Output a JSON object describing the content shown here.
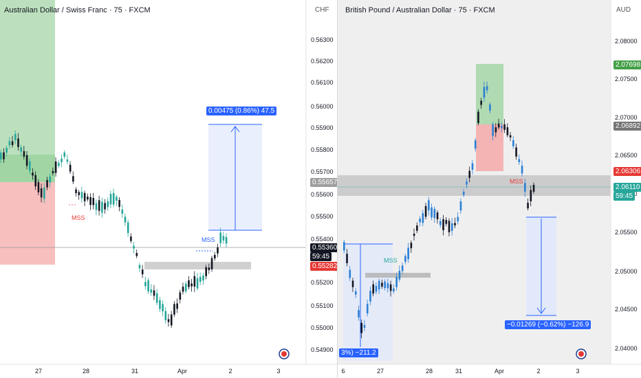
{
  "left_chart": {
    "title": "Australian Dollar / Swiss Franc · 75 · FXCM",
    "currency": "CHF",
    "y_ticks": [
      "0.56300",
      "0.56200",
      "0.56100",
      "0.56000",
      "0.55900",
      "0.55800",
      "0.55700",
      "0.55600",
      "0.55500",
      "0.55400",
      "0.55200",
      "0.55100",
      "0.55000",
      "0.54900"
    ],
    "x_ticks": [
      "27",
      "28",
      "31",
      "Apr",
      "2",
      "3"
    ],
    "current_price": "0.55360",
    "countdown": "59:45",
    "level_tag_a": "0.55657",
    "level_tag_b": "0.55282",
    "measure_label": "0.00475 (0.86%) 47.5",
    "mss_labels": [
      "MSS",
      "MSS"
    ],
    "colors": {
      "up": "#26a69a",
      "down": "#131722",
      "measure": "#2962ff",
      "sell_zone": "#f4a9a8",
      "buy_zone": "#a5d6a7"
    }
  },
  "right_chart": {
    "title": "British Pound / Australian Dollar · 75 · FXCM",
    "currency": "AUD",
    "y_ticks": [
      "2.08000",
      "2.07500",
      "2.07000",
      "2.06500",
      "2.06000",
      "2.05500",
      "2.05000",
      "2.04500",
      "2.04000"
    ],
    "x_ticks": [
      "6",
      "27",
      "28",
      "31",
      "Apr",
      "2",
      "3"
    ],
    "price_tag_green": "2.07698",
    "price_tag_grey": "2.06892",
    "price_tag_red": "2.06306",
    "current_price": "2.06110",
    "countdown": "59:45",
    "measure_label": "−0.01269 (−0.62%) −126.9",
    "partial_label": "3%) −211.2",
    "mss_labels": [
      "MSS",
      "MSS"
    ],
    "colors": {
      "up": "#2a7fd4",
      "down": "#131722",
      "measure": "#2962ff"
    }
  }
}
